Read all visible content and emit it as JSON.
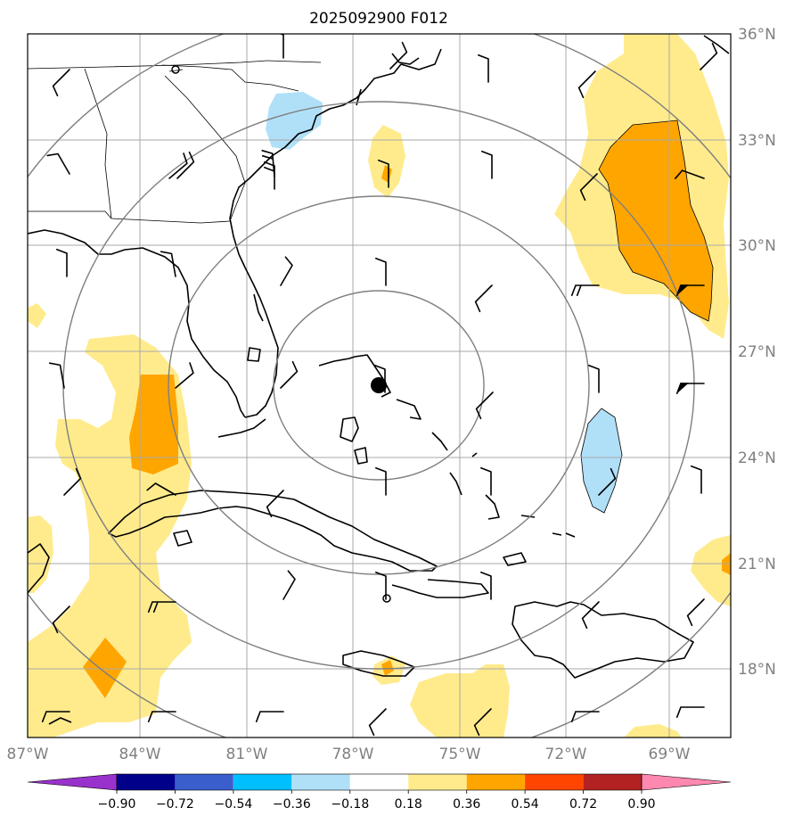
{
  "map": {
    "title": "2025092900 F012",
    "lon_ticks": [
      "87°W",
      "84°W",
      "81°W",
      "78°W",
      "75°W",
      "72°W",
      "69°W"
    ],
    "lat_ticks": [
      "36°N",
      "33°N",
      "30°N",
      "27°N",
      "24°N",
      "21°N",
      "18°N"
    ],
    "extent": {
      "lon_min": -87,
      "lon_max": -67.2,
      "lat_min": 16,
      "lat_max": 36
    },
    "storm_center": {
      "lon": -77.3,
      "lat": 26.0
    },
    "range_rings": 4,
    "colors": {
      "c_018_036": "#ffeb8c",
      "c_036_054": "#ffa500",
      "c_neg_018_036": "#b0e0f8",
      "ring": "#7f7f7f",
      "grid": "#a9a9a9"
    }
  },
  "colorbar": {
    "ticks": [
      "−0.90",
      "−0.72",
      "−0.54",
      "−0.36",
      "−0.18",
      "0.18",
      "0.36",
      "0.54",
      "0.72",
      "0.90"
    ],
    "colors": [
      "#9932cc",
      "#00008b",
      "#3a5fcd",
      "#00bfff",
      "#b0e0f8",
      "#ffffff",
      "#ffeb8c",
      "#ffa500",
      "#ff4500",
      "#b22222",
      "#ff88b0"
    ]
  }
}
